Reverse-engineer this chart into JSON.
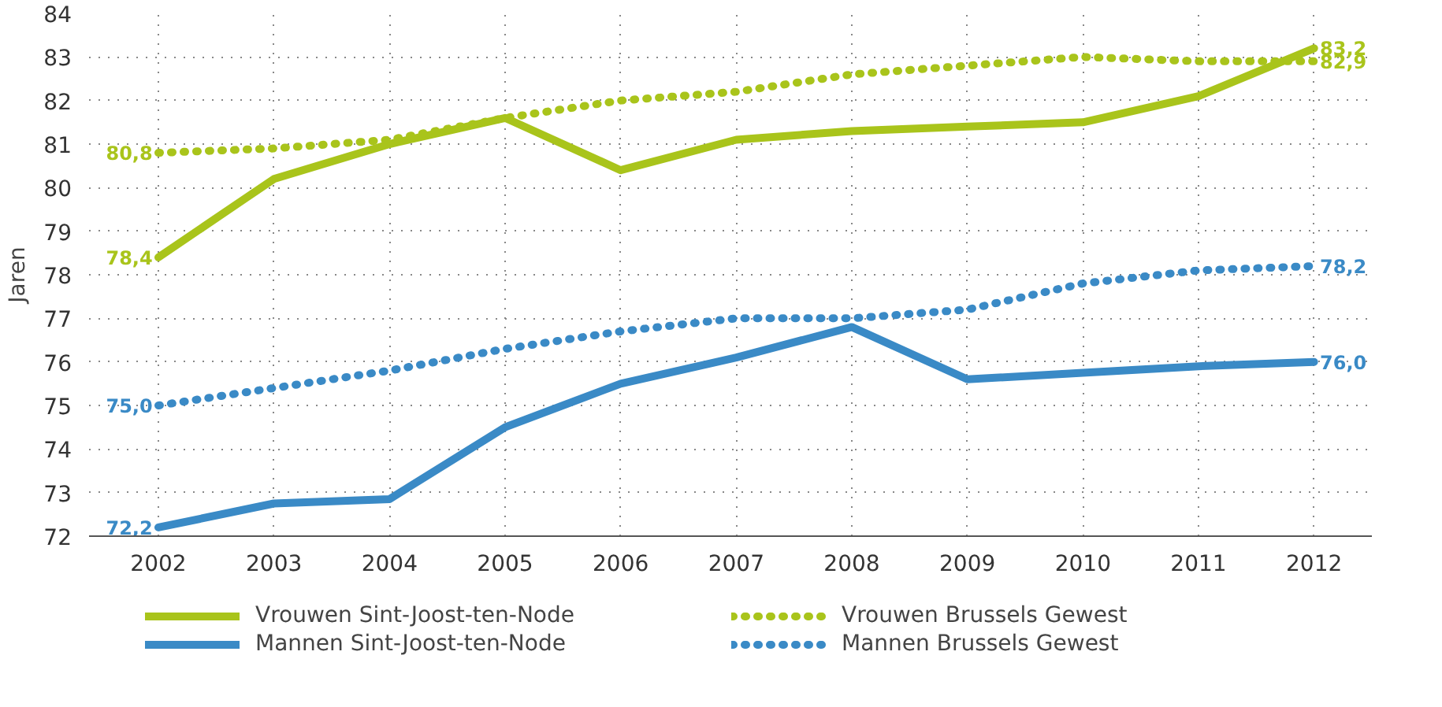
{
  "chart_data": {
    "type": "line",
    "ylabel": "Jaren",
    "categories": [
      "2002",
      "2003",
      "2004",
      "2005",
      "2006",
      "2007",
      "2008",
      "2009",
      "2010",
      "2011",
      "2012"
    ],
    "ylim": [
      72,
      84
    ],
    "yticks": [
      72,
      73,
      74,
      75,
      76,
      77,
      78,
      79,
      80,
      81,
      82,
      83,
      84
    ],
    "grid": true,
    "legend": "bottom",
    "marker": "none",
    "series": [
      {
        "name": "Vrouwen Sint-Joost-ten-Node",
        "color": "#a9c41b",
        "line_style": "solid",
        "values": [
          78.4,
          80.2,
          81.0,
          81.6,
          80.4,
          81.1,
          81.3,
          81.4,
          81.5,
          82.1,
          83.2
        ],
        "value_labels": [
          "78,4",
          null,
          null,
          null,
          null,
          null,
          null,
          null,
          null,
          null,
          "83,2"
        ]
      },
      {
        "name": "Mannen Sint-Joost-ten-Node",
        "color": "#3a8ac6",
        "line_style": "solid",
        "values": [
          72.2,
          72.75,
          72.85,
          74.5,
          75.5,
          76.1,
          76.8,
          75.6,
          75.75,
          75.9,
          76.0
        ],
        "value_labels": [
          "72,2",
          null,
          null,
          null,
          null,
          null,
          null,
          null,
          null,
          null,
          "76,0"
        ]
      },
      {
        "name": "Vrouwen Brussels Gewest",
        "color": "#a9c41b",
        "line_style": "dotted",
        "values": [
          80.8,
          80.9,
          81.1,
          81.6,
          82.0,
          82.2,
          82.6,
          82.8,
          83.0,
          82.9,
          82.9
        ],
        "value_labels": [
          "80,8",
          null,
          null,
          null,
          null,
          null,
          null,
          null,
          null,
          null,
          "82,9"
        ]
      },
      {
        "name": "Mannen Brussels Gewest",
        "color": "#3a8ac6",
        "line_style": "dotted",
        "values": [
          75.0,
          75.4,
          75.8,
          76.3,
          76.7,
          77.0,
          77.0,
          77.2,
          77.8,
          78.1,
          78.2
        ],
        "value_labels": [
          "75,0",
          null,
          null,
          null,
          null,
          null,
          null,
          null,
          null,
          null,
          "78,2"
        ]
      }
    ]
  }
}
